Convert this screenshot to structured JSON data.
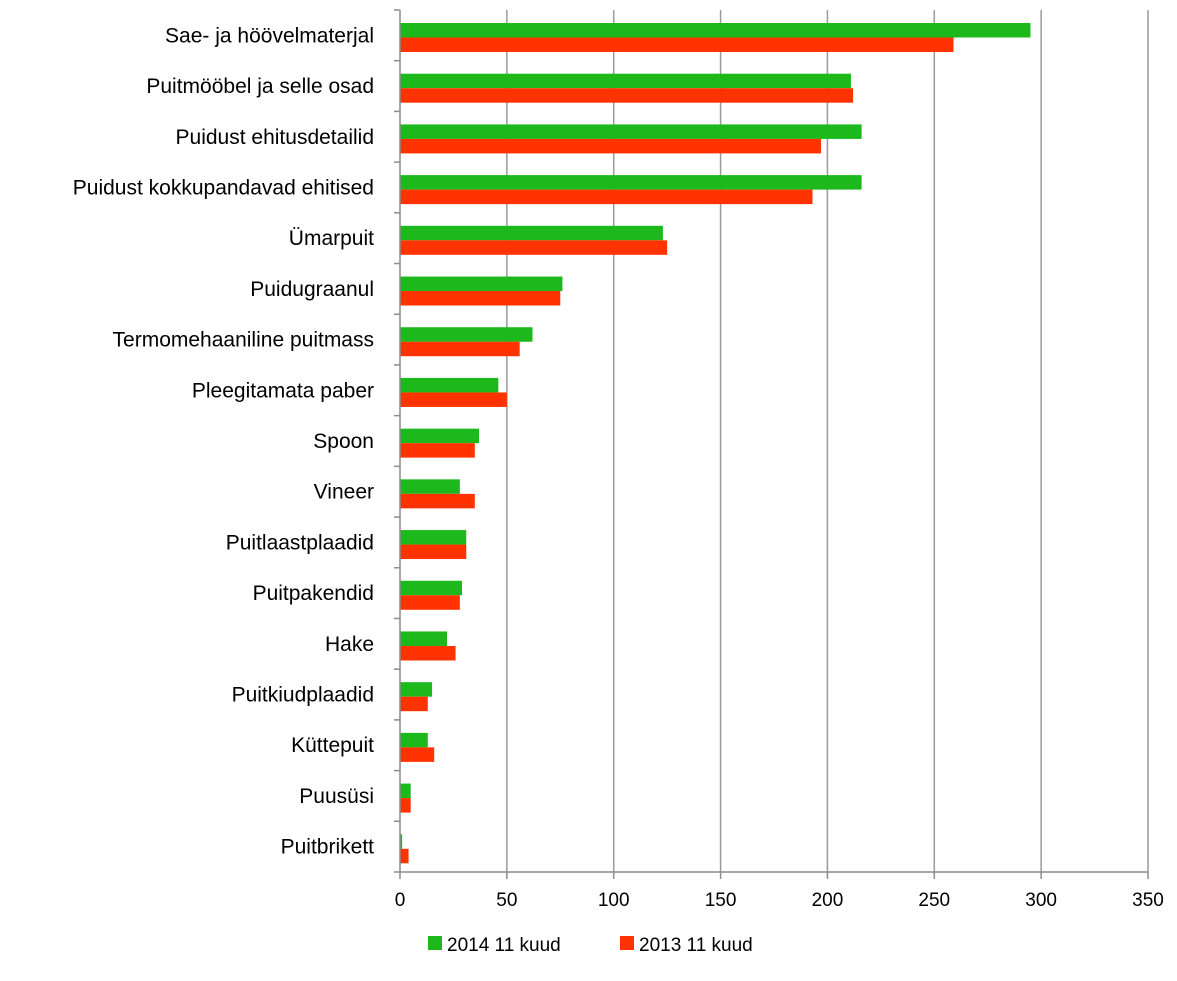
{
  "chart_data": {
    "type": "bar",
    "orientation": "horizontal",
    "categories": [
      "Sae- ja höövelmaterjal",
      "Puitmööbel ja selle osad",
      "Puidust ehitusdetailid",
      "Puidust kokkupandavad ehitised",
      "Ümarpuit",
      "Puidugraanul",
      "Termomehaaniline puitmass",
      "Pleegitamata paber",
      "Spoon",
      "Vineer",
      "Puitlaastplaadid",
      "Puitpakendid",
      "Hake",
      "Puitkiudplaadid",
      "Küttepuit",
      "Puusüsi",
      "Puitbrikett"
    ],
    "series": [
      {
        "name": "2014 11 kuud",
        "color": "#1cb81c",
        "values": [
          295,
          211,
          216,
          216,
          123,
          76,
          62,
          46,
          37,
          28,
          31,
          29,
          22,
          15,
          13,
          5,
          1
        ]
      },
      {
        "name": "2013 11 kuud",
        "color": "#ff3300",
        "values": [
          259,
          212,
          197,
          193,
          125,
          75,
          56,
          50,
          35,
          35,
          31,
          28,
          26,
          13,
          16,
          5,
          4
        ]
      }
    ],
    "xlim": [
      0,
      350
    ],
    "xticks": [
      0,
      50,
      100,
      150,
      200,
      250,
      300,
      350
    ],
    "tick_labels": [
      "0",
      "50",
      "100",
      "150",
      "200",
      "250",
      "300",
      "350"
    ],
    "grid": "vertical",
    "legend_position": "bottom",
    "title": "",
    "xlabel": "",
    "ylabel": ""
  }
}
